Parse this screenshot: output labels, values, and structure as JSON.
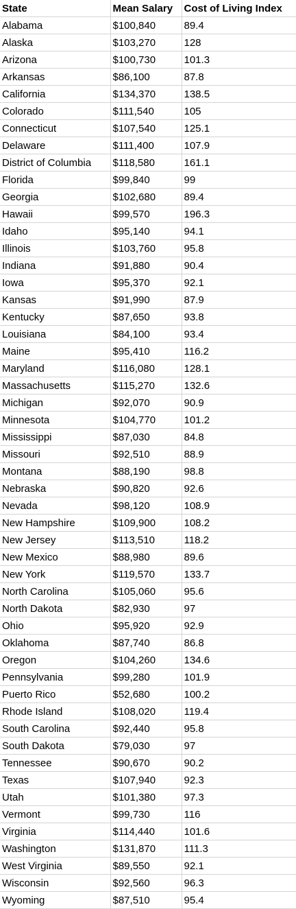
{
  "headers": [
    "State",
    "Mean Salary",
    "Cost of Living Index"
  ],
  "rows": [
    [
      "Alabama",
      "$100,840",
      "89.4"
    ],
    [
      "Alaska",
      "$103,270",
      "128"
    ],
    [
      "Arizona",
      "$100,730",
      "101.3"
    ],
    [
      "Arkansas",
      "$86,100",
      "87.8"
    ],
    [
      "California",
      "$134,370",
      "138.5"
    ],
    [
      "Colorado",
      "$111,540",
      "105"
    ],
    [
      "Connecticut",
      "$107,540",
      "125.1"
    ],
    [
      "Delaware",
      "$111,400",
      "107.9"
    ],
    [
      "District of Columbia",
      "$118,580",
      "161.1"
    ],
    [
      "Florida",
      "$99,840",
      "99"
    ],
    [
      "Georgia",
      "$102,680",
      "89.4"
    ],
    [
      "Hawaii",
      "$99,570",
      "196.3"
    ],
    [
      "Idaho",
      "$95,140",
      "94.1"
    ],
    [
      "Illinois",
      "$103,760",
      "95.8"
    ],
    [
      "Indiana",
      "$91,880",
      "90.4"
    ],
    [
      "Iowa",
      "$95,370",
      "92.1"
    ],
    [
      "Kansas",
      "$91,990",
      "87.9"
    ],
    [
      "Kentucky",
      "$87,650",
      "93.8"
    ],
    [
      "Louisiana",
      "$84,100",
      "93.4"
    ],
    [
      "Maine",
      "$95,410",
      "116.2"
    ],
    [
      "Maryland",
      "$116,080",
      "128.1"
    ],
    [
      "Massachusetts",
      "$115,270",
      "132.6"
    ],
    [
      "Michigan",
      "$92,070",
      "90.9"
    ],
    [
      "Minnesota",
      "$104,770",
      "101.2"
    ],
    [
      "Mississippi",
      "$87,030",
      "84.8"
    ],
    [
      "Missouri",
      "$92,510",
      "88.9"
    ],
    [
      "Montana",
      "$88,190",
      "98.8"
    ],
    [
      "Nebraska",
      "$90,820",
      "92.6"
    ],
    [
      "Nevada",
      "$98,120",
      "108.9"
    ],
    [
      "New Hampshire",
      "$109,900",
      "108.2"
    ],
    [
      "New Jersey",
      "$113,510",
      "118.2"
    ],
    [
      "New Mexico",
      "$88,980",
      "89.6"
    ],
    [
      "New York",
      "$119,570",
      "133.7"
    ],
    [
      "North Carolina",
      "$105,060",
      "95.6"
    ],
    [
      "North Dakota",
      "$82,930",
      "97"
    ],
    [
      "Ohio",
      "$95,920",
      "92.9"
    ],
    [
      "Oklahoma",
      "$87,740",
      "86.8"
    ],
    [
      "Oregon",
      "$104,260",
      "134.6"
    ],
    [
      "Pennsylvania",
      "$99,280",
      "101.9"
    ],
    [
      "Puerto Rico",
      "$52,680",
      "100.2"
    ],
    [
      "Rhode Island",
      "$108,020",
      "119.4"
    ],
    [
      "South Carolina",
      "$92,440",
      "95.8"
    ],
    [
      "South Dakota",
      "$79,030",
      "97"
    ],
    [
      "Tennessee",
      "$90,670",
      "90.2"
    ],
    [
      "Texas",
      "$107,940",
      "92.3"
    ],
    [
      "Utah",
      "$101,380",
      "97.3"
    ],
    [
      "Vermont",
      "$99,730",
      "116"
    ],
    [
      "Virginia",
      "$114,440",
      "101.6"
    ],
    [
      "Washington",
      "$131,870",
      "111.3"
    ],
    [
      "West Virginia",
      "$89,550",
      "92.1"
    ],
    [
      "Wisconsin",
      "$92,560",
      "96.3"
    ],
    [
      "Wyoming",
      "$87,510",
      "95.4"
    ]
  ]
}
